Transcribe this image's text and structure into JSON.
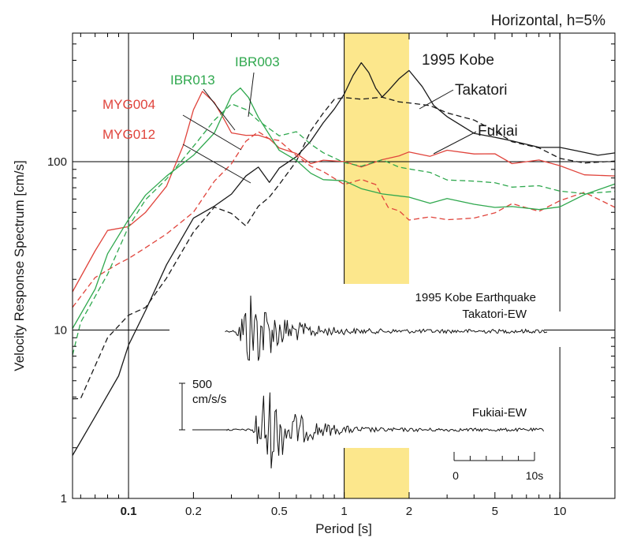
{
  "chart_data": {
    "type": "line",
    "title": "Horizontal, h=5%",
    "xlabel": "Period [s]",
    "ylabel": "Velocity Response Spectrum [cm/s]",
    "xscale": "log",
    "yscale": "log",
    "xlim": [
      0.055,
      18
    ],
    "ylim": [
      1,
      580
    ],
    "x_ticks": [
      0.1,
      0.2,
      0.5,
      1,
      2,
      5,
      10
    ],
    "x_tick_labels": [
      "0.1",
      "0.2",
      "0.5",
      "1",
      "2",
      "5",
      "10"
    ],
    "y_ticks": [
      1,
      10,
      100
    ],
    "y_tick_labels": [
      "1",
      "10",
      "100"
    ],
    "highlight_band": {
      "x_from": 1.0,
      "x_to": 2.0,
      "color": "#fce78c"
    },
    "colors": {
      "red": "#e0443c",
      "green": "#2fa84e",
      "black": "#1a1a1a"
    },
    "series": [
      {
        "name": "Takatori",
        "color": "#1a1a1a",
        "dash": "solid",
        "x": [
          0.055,
          0.07,
          0.09,
          0.1,
          0.12,
          0.15,
          0.2,
          0.25,
          0.3,
          0.35,
          0.4,
          0.45,
          0.5,
          0.6,
          0.7,
          0.8,
          0.9,
          1.0,
          1.1,
          1.2,
          1.3,
          1.4,
          1.5,
          1.6,
          1.8,
          2.0,
          2.3,
          2.6,
          3.0,
          4.0,
          5.0,
          6.0,
          8.0,
          10,
          12,
          15,
          18
        ],
        "y": [
          1.8,
          3,
          5.5,
          8,
          13,
          25,
          45,
          55,
          65,
          80,
          95,
          75,
          90,
          110,
          130,
          170,
          210,
          245,
          330,
          390,
          330,
          280,
          240,
          260,
          320,
          340,
          280,
          220,
          180,
          150,
          140,
          130,
          125,
          120,
          115,
          112,
          110
        ]
      },
      {
        "name": "Fukiai",
        "color": "#1a1a1a",
        "dash": "dashed",
        "x": [
          0.055,
          0.06,
          0.08,
          0.1,
          0.12,
          0.15,
          0.2,
          0.25,
          0.3,
          0.35,
          0.4,
          0.45,
          0.5,
          0.6,
          0.7,
          0.8,
          0.9,
          1.0,
          1.2,
          1.5,
          1.8,
          2.0,
          2.5,
          3.0,
          4.0,
          5.0,
          6.0,
          8.0,
          10,
          13,
          18
        ],
        "y": [
          3.8,
          4,
          9,
          12,
          14,
          20,
          38,
          55,
          48,
          42,
          55,
          60,
          75,
          100,
          150,
          200,
          230,
          240,
          240,
          235,
          230,
          225,
          210,
          200,
          175,
          150,
          135,
          118,
          105,
          100,
          98
        ]
      },
      {
        "name": "MYG004",
        "color": "#e0443c",
        "dash": "solid",
        "x": [
          0.055,
          0.07,
          0.08,
          0.1,
          0.12,
          0.15,
          0.18,
          0.2,
          0.22,
          0.25,
          0.28,
          0.3,
          0.35,
          0.4,
          0.45,
          0.5,
          0.6,
          0.7,
          0.8,
          1.0,
          1.2,
          1.5,
          1.8,
          2.0,
          2.5,
          3.0,
          4.0,
          5.0,
          6.0,
          8.0,
          10,
          13,
          18
        ],
        "y": [
          17,
          30,
          38,
          42,
          50,
          70,
          130,
          200,
          260,
          230,
          170,
          150,
          145,
          140,
          140,
          120,
          110,
          100,
          100,
          100,
          95,
          100,
          110,
          115,
          105,
          120,
          110,
          110,
          100,
          100,
          95,
          85,
          80
        ]
      },
      {
        "name": "MYG012",
        "color": "#e0443c",
        "dash": "dashed",
        "x": [
          0.055,
          0.07,
          0.09,
          0.1,
          0.12,
          0.15,
          0.2,
          0.25,
          0.3,
          0.35,
          0.4,
          0.45,
          0.5,
          0.6,
          0.7,
          0.8,
          1.0,
          1.2,
          1.4,
          1.6,
          1.8,
          2.0,
          2.5,
          3.0,
          4.0,
          5.0,
          6.0,
          8.0,
          10,
          13,
          18
        ],
        "y": [
          14,
          20,
          25,
          27,
          30,
          38,
          50,
          75,
          100,
          130,
          150,
          140,
          130,
          110,
          95,
          85,
          75,
          78,
          72,
          55,
          50,
          45,
          48,
          44,
          47,
          50,
          55,
          52,
          58,
          65,
          55
        ]
      },
      {
        "name": "IBR013",
        "color": "#2fa84e",
        "dash": "dashed",
        "x": [
          0.055,
          0.06,
          0.08,
          0.1,
          0.12,
          0.15,
          0.2,
          0.25,
          0.3,
          0.35,
          0.4,
          0.5,
          0.6,
          0.7,
          0.8,
          1.0,
          1.2,
          1.5,
          1.8,
          2.0,
          2.5,
          3.0,
          4.0,
          5.0,
          6.0,
          8.0,
          10,
          13,
          18
        ],
        "y": [
          7,
          11,
          22,
          40,
          60,
          80,
          120,
          180,
          220,
          200,
          180,
          140,
          150,
          130,
          110,
          100,
          95,
          100,
          95,
          90,
          85,
          80,
          75,
          75,
          72,
          70,
          68,
          65,
          65
        ]
      },
      {
        "name": "IBR003",
        "color": "#2fa84e",
        "dash": "solid",
        "x": [
          0.055,
          0.07,
          0.08,
          0.1,
          0.12,
          0.15,
          0.2,
          0.25,
          0.3,
          0.33,
          0.36,
          0.4,
          0.5,
          0.6,
          0.7,
          0.8,
          1.0,
          1.2,
          1.5,
          2.0,
          2.5,
          3.0,
          4.0,
          5.0,
          6.0,
          8.0,
          10,
          13,
          18
        ],
        "y": [
          10,
          18,
          28,
          45,
          65,
          80,
          110,
          150,
          240,
          280,
          240,
          180,
          120,
          100,
          85,
          80,
          75,
          70,
          65,
          60,
          58,
          60,
          55,
          55,
          53,
          52,
          55,
          62,
          75
        ]
      }
    ],
    "curve_labels": [
      {
        "text": "IBR003",
        "color": "#2fa84e"
      },
      {
        "text": "IBR013",
        "color": "#2fa84e"
      },
      {
        "text": "MYG004",
        "color": "#e0443c"
      },
      {
        "text": "MYG012",
        "color": "#e0443c"
      },
      {
        "text": "1995 Kobe",
        "color": "#1a1a1a"
      },
      {
        "text": "Takatori",
        "color": "#1a1a1a"
      },
      {
        "text": "Fukiai",
        "color": "#1a1a1a"
      }
    ],
    "inset": {
      "caption_line1": "1995 Kobe Earthquake",
      "caption_line2": "Takatori-EW",
      "trace2_label": "Fukiai-EW",
      "amp_scale_value": "500",
      "amp_scale_unit": "cm/s/s",
      "time_scale_start": "0",
      "time_scale_end": "10s"
    }
  }
}
